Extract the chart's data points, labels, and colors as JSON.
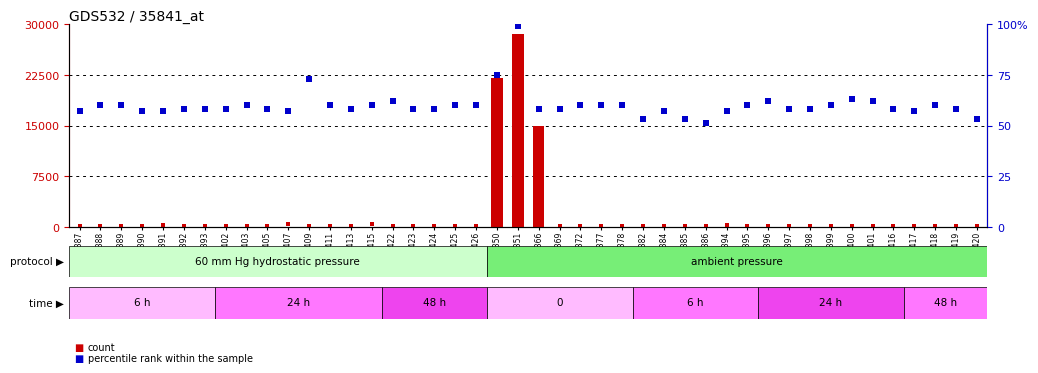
{
  "title": "GDS532 / 35841_at",
  "samples": [
    "GSM11387",
    "GSM11388",
    "GSM11389",
    "GSM11390",
    "GSM11391",
    "GSM11392",
    "GSM11393",
    "GSM11402",
    "GSM11403",
    "GSM11405",
    "GSM11407",
    "GSM11409",
    "GSM11411",
    "GSM11413",
    "GSM11415",
    "GSM11422",
    "GSM11423",
    "GSM11424",
    "GSM11425",
    "GSM11426",
    "GSM11350",
    "GSM11351",
    "GSM11366",
    "GSM11369",
    "GSM11372",
    "GSM11377",
    "GSM11378",
    "GSM11382",
    "GSM11384",
    "GSM11385",
    "GSM11386",
    "GSM11394",
    "GSM11395",
    "GSM11396",
    "GSM11397",
    "GSM11398",
    "GSM11399",
    "GSM11400",
    "GSM11401",
    "GSM11416",
    "GSM11417",
    "GSM11418",
    "GSM11419",
    "GSM11420"
  ],
  "expression": [
    16500,
    17500,
    17500,
    16500,
    16500,
    17000,
    17000,
    17000,
    17500,
    17000,
    16500,
    21000,
    17500,
    17000,
    17500,
    18000,
    17000,
    17000,
    17500,
    17500,
    22000,
    28500,
    15000,
    17000,
    17500,
    17500,
    17500,
    15500,
    16500,
    15500,
    15000,
    16500,
    17500,
    18000,
    17000,
    17000,
    17500,
    18500,
    18000,
    17000,
    16500,
    17500,
    17000,
    15500
  ],
  "percentile": [
    57,
    60,
    60,
    57,
    57,
    58,
    58,
    58,
    60,
    58,
    57,
    73,
    60,
    58,
    60,
    62,
    58,
    58,
    60,
    60,
    75,
    99,
    58,
    58,
    60,
    60,
    60,
    53,
    57,
    53,
    51,
    57,
    60,
    62,
    58,
    58,
    60,
    63,
    62,
    58,
    57,
    60,
    58,
    53
  ],
  "count_small": [
    150,
    150,
    150,
    150,
    250,
    150,
    150,
    150,
    150,
    150,
    350,
    150,
    150,
    150,
    350,
    150,
    150,
    150,
    150,
    150,
    150,
    150,
    150,
    150,
    150,
    150,
    150,
    150,
    150,
    150,
    150,
    250,
    150,
    150,
    150,
    150,
    150,
    150,
    150,
    150,
    150,
    150,
    150,
    150
  ],
  "big_bars": [
    {
      "index": 20,
      "value": 22000
    },
    {
      "index": 21,
      "value": 28500
    },
    {
      "index": 22,
      "value": 15000
    }
  ],
  "protocol_groups": [
    {
      "label": "60 mm Hg hydrostatic pressure",
      "start": 0,
      "end": 20,
      "color": "#ccffcc"
    },
    {
      "label": "ambient pressure",
      "start": 20,
      "end": 44,
      "color": "#77ee77"
    }
  ],
  "time_groups": [
    {
      "label": "6 h",
      "start": 0,
      "end": 7,
      "color": "#ffbbff"
    },
    {
      "label": "24 h",
      "start": 7,
      "end": 15,
      "color": "#ff77ff"
    },
    {
      "label": "48 h",
      "start": 15,
      "end": 20,
      "color": "#ee44ee"
    },
    {
      "label": "0",
      "start": 20,
      "end": 27,
      "color": "#ffbbff"
    },
    {
      "label": "6 h",
      "start": 27,
      "end": 33,
      "color": "#ff77ff"
    },
    {
      "label": "24 h",
      "start": 33,
      "end": 40,
      "color": "#ee44ee"
    },
    {
      "label": "48 h",
      "start": 40,
      "end": 44,
      "color": "#ff77ff"
    }
  ],
  "ylim_left": [
    0,
    30000
  ],
  "ylim_right": [
    0,
    100
  ],
  "yticks_left": [
    0,
    7500,
    15000,
    22500,
    30000
  ],
  "yticks_right": [
    0,
    25,
    50,
    75,
    100
  ],
  "left_axis_color": "#cc0000",
  "right_axis_color": "#0000cc",
  "bar_color": "#cc0000",
  "dot_color": "#0000cc",
  "background_color": "#ffffff",
  "plot_bg": "#ffffff",
  "legend_count_color": "#cc0000",
  "legend_percentile_color": "#0000cc"
}
